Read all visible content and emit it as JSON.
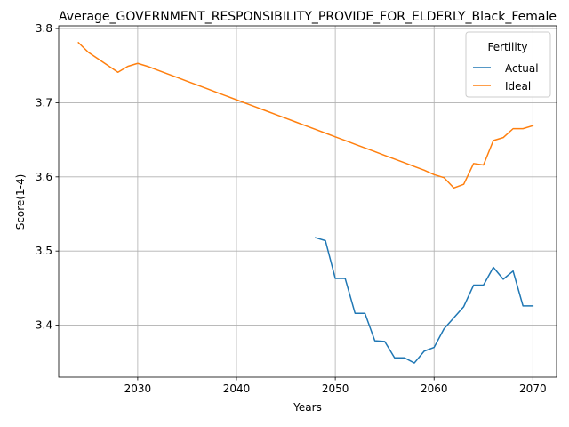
{
  "chart_data": {
    "type": "line",
    "title": "Average_GOVERNMENT_RESPONSIBILITY_PROVIDE_FOR_ELDERLY_Black_Female",
    "xlabel": "Years",
    "ylabel": "Score(1-4)",
    "xlim": [
      2022,
      2072.4
    ],
    "ylim": [
      3.3299,
      3.8037
    ],
    "xticks": [
      2030,
      2040,
      2050,
      2060,
      2070
    ],
    "yticks": [
      3.4,
      3.5,
      3.6,
      3.7,
      3.8
    ],
    "ytick_labels": [
      "3.4",
      "3.5",
      "3.6",
      "3.7",
      "3.8"
    ],
    "grid": true,
    "legend": {
      "title": "Fertility",
      "position": "top-right"
    },
    "series": [
      {
        "name": "Actual",
        "color": "#1f77b4",
        "x": [
          2048,
          2049,
          2050,
          2051,
          2052,
          2053,
          2054,
          2055,
          2056,
          2057,
          2058,
          2059,
          2060,
          2061,
          2062,
          2063,
          2064,
          2065,
          2066,
          2067,
          2068,
          2069,
          2070
        ],
        "y": [
          3.518,
          3.514,
          3.463,
          3.463,
          3.416,
          3.416,
          3.379,
          3.378,
          3.356,
          3.356,
          3.349,
          3.365,
          3.37,
          3.395,
          3.41,
          3.425,
          3.454,
          3.454,
          3.478,
          3.462,
          3.473,
          3.426,
          3.426
        ]
      },
      {
        "name": "Ideal",
        "color": "#ff7f0e",
        "x": [
          2024,
          2025,
          2026,
          2027,
          2028,
          2029,
          2030,
          2031,
          2032,
          2033,
          2034,
          2035,
          2036,
          2037,
          2038,
          2039,
          2040,
          2041,
          2042,
          2043,
          2044,
          2045,
          2046,
          2047,
          2048,
          2049,
          2050,
          2051,
          2052,
          2053,
          2054,
          2055,
          2056,
          2057,
          2058,
          2059,
          2060,
          2061,
          2062,
          2063,
          2064,
          2065,
          2066,
          2067,
          2068,
          2069,
          2070
        ],
        "y": [
          3.781,
          3.768,
          3.759,
          3.75,
          3.741,
          3.749,
          3.753,
          3.749,
          3.744,
          3.739,
          3.734,
          3.729,
          3.724,
          3.719,
          3.714,
          3.709,
          3.704,
          3.699,
          3.694,
          3.689,
          3.684,
          3.679,
          3.674,
          3.669,
          3.664,
          3.659,
          3.654,
          3.649,
          3.644,
          3.639,
          3.634,
          3.629,
          3.624,
          3.619,
          3.614,
          3.609,
          3.603,
          3.599,
          3.585,
          3.59,
          3.618,
          3.616,
          3.649,
          3.653,
          3.665,
          3.665,
          3.669
        ]
      }
    ]
  }
}
